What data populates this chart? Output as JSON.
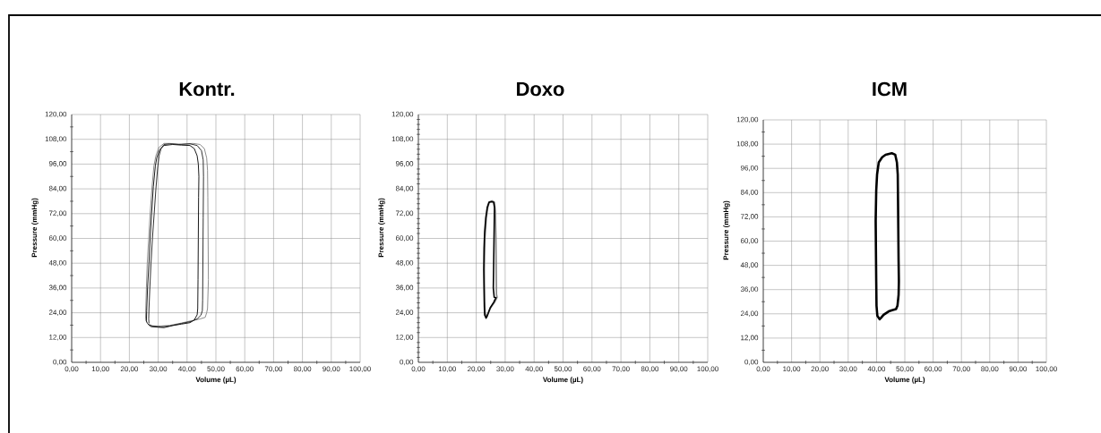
{
  "chart_data": [
    {
      "type": "line",
      "title": "Kontr.",
      "xlabel": "Volume (µL)",
      "ylabel": "Pressure (mmHg)",
      "xlim": [
        0,
        100
      ],
      "ylim": [
        0,
        120
      ],
      "grid": true,
      "xticks": [
        {
          "value": 0,
          "label": "0,00"
        },
        {
          "value": 5,
          "label": null
        },
        {
          "value": 10,
          "label": "10,00"
        },
        {
          "value": 15,
          "label": null
        },
        {
          "value": 20,
          "label": "20,00"
        },
        {
          "value": 25,
          "label": null
        },
        {
          "value": 30,
          "label": "30,00"
        },
        {
          "value": 35,
          "label": null
        },
        {
          "value": 40,
          "label": "40,00"
        },
        {
          "value": 45,
          "label": null
        },
        {
          "value": 50,
          "label": "50,00"
        },
        {
          "value": 55,
          "label": null
        },
        {
          "value": 60,
          "label": "60,00"
        },
        {
          "value": 65,
          "label": null
        },
        {
          "value": 70,
          "label": "70,00"
        },
        {
          "value": 75,
          "label": null
        },
        {
          "value": 80,
          "label": "80,00"
        },
        {
          "value": 85,
          "label": null
        },
        {
          "value": 90,
          "label": "90,00"
        },
        {
          "value": 95,
          "label": null
        },
        {
          "value": 100,
          "label": "100,00"
        }
      ],
      "yticks": [
        {
          "value": 0,
          "label": "0,00"
        },
        {
          "value": 6,
          "label": null
        },
        {
          "value": 12,
          "label": "12,00"
        },
        {
          "value": 18,
          "label": null
        },
        {
          "value": 24,
          "label": "24,00"
        },
        {
          "value": 30,
          "label": null
        },
        {
          "value": 36,
          "label": "36,00"
        },
        {
          "value": 42,
          "label": null
        },
        {
          "value": 48,
          "label": "48,00"
        },
        {
          "value": 54,
          "label": null
        },
        {
          "value": 60,
          "label": "60,00"
        },
        {
          "value": 66,
          "label": null
        },
        {
          "value": 72,
          "label": "72,00"
        },
        {
          "value": 78,
          "label": null
        },
        {
          "value": 84,
          "label": "84,00"
        },
        {
          "value": 90,
          "label": null
        },
        {
          "value": 96,
          "label": "96,00"
        },
        {
          "value": 102,
          "label": null
        },
        {
          "value": 108,
          "label": "108,00"
        },
        {
          "value": 114,
          "label": null
        },
        {
          "value": 120,
          "label": "120,00"
        }
      ],
      "series": [
        {
          "color": "#808080",
          "x": [
            26.2,
            27,
            30,
            34,
            38,
            42,
            44.5,
            46.3,
            46.8,
            47.1,
            47.4,
            47.3,
            47.2,
            47.1,
            46.8,
            46,
            44.5,
            42,
            38,
            34,
            32,
            30.2,
            29.2,
            28.5,
            27.8,
            27.2,
            26.7,
            26.2,
            25.9,
            25.7,
            25.6,
            25.9
          ],
          "values": [
            19,
            17.8,
            17.5,
            17.9,
            19,
            20.3,
            21,
            21.8,
            24,
            26,
            40,
            60,
            80,
            93,
            99,
            103.5,
            105.5,
            106,
            105.6,
            106,
            106,
            104,
            100,
            95,
            84,
            72,
            60,
            48,
            36,
            26,
            21,
            19.8
          ]
        },
        {
          "color": "#000000",
          "x": [
            26.5,
            27.5,
            30,
            32,
            35,
            38,
            41,
            42.5,
            43.5,
            43.7,
            43.8,
            43.9,
            44,
            44.1,
            43.9,
            43.5,
            42.5,
            41,
            38,
            35,
            32,
            30.5,
            29.5,
            29,
            28.3,
            27.7,
            27.2,
            26.8,
            26.3,
            26,
            25.9,
            26.2
          ],
          "values": [
            18.5,
            17.3,
            17,
            16.8,
            17.8,
            18.5,
            19.2,
            20.5,
            23,
            26,
            40,
            60,
            80,
            90,
            96,
            100,
            103.5,
            105,
            105.2,
            105.5,
            105,
            103,
            99,
            95,
            85,
            72,
            60,
            48,
            36,
            25,
            20,
            19
          ]
        },
        {
          "color": "#1a1a1a",
          "x": [
            27,
            28,
            31,
            34,
            38,
            41.5,
            43.5,
            44.8,
            45.3,
            45.4,
            45.5,
            45.6,
            45.7,
            45.6,
            45,
            43.5,
            41,
            37,
            34,
            32,
            31,
            30.3,
            29.8,
            29.2,
            28.6,
            28,
            27.5,
            27.1,
            26.8,
            26.7,
            26.8
          ],
          "values": [
            18.2,
            17.5,
            17.2,
            17.6,
            18.8,
            19.8,
            21,
            22.8,
            25,
            30,
            50,
            70,
            90,
            98,
            102.5,
            105,
            105.8,
            105.5,
            105.8,
            105.5,
            103.5,
            100,
            94,
            84,
            72,
            60,
            48,
            36,
            26,
            21,
            19
          ]
        }
      ]
    },
    {
      "type": "line",
      "title": "Doxo",
      "xlabel": "Volume (µL)",
      "ylabel": "Pressure (mmHg)",
      "xlim": [
        0,
        100
      ],
      "ylim": [
        0,
        120
      ],
      "grid": true,
      "xticks": [
        {
          "value": 0,
          "label": "0,00"
        },
        {
          "value": 5,
          "label": null
        },
        {
          "value": 10,
          "label": "10,00"
        },
        {
          "value": 15,
          "label": null
        },
        {
          "value": 20,
          "label": "20,00"
        },
        {
          "value": 25,
          "label": null
        },
        {
          "value": 30,
          "label": "30,00"
        },
        {
          "value": 35,
          "label": null
        },
        {
          "value": 40,
          "label": "40,00"
        },
        {
          "value": 45,
          "label": null
        },
        {
          "value": 50,
          "label": "50,00"
        },
        {
          "value": 55,
          "label": null
        },
        {
          "value": 60,
          "label": "60,00"
        },
        {
          "value": 65,
          "label": null
        },
        {
          "value": 70,
          "label": "70,00"
        },
        {
          "value": 75,
          "label": null
        },
        {
          "value": 80,
          "label": "80,00"
        },
        {
          "value": 85,
          "label": null
        },
        {
          "value": 90,
          "label": "90,00"
        },
        {
          "value": 95,
          "label": null
        },
        {
          "value": 100,
          "label": "100,00"
        }
      ],
      "yticks": [
        {
          "value": 0,
          "label": "0,00"
        },
        {
          "value": 2.4,
          "label": null
        },
        {
          "value": 4.8,
          "label": null
        },
        {
          "value": 7.2,
          "label": null
        },
        {
          "value": 9.6,
          "label": null
        },
        {
          "value": 12,
          "label": "12,00"
        },
        {
          "value": 14.4,
          "label": null
        },
        {
          "value": 16.8,
          "label": null
        },
        {
          "value": 19.2,
          "label": null
        },
        {
          "value": 21.6,
          "label": null
        },
        {
          "value": 24,
          "label": "24,00"
        },
        {
          "value": 26.4,
          "label": null
        },
        {
          "value": 28.8,
          "label": null
        },
        {
          "value": 31.2,
          "label": null
        },
        {
          "value": 33.6,
          "label": null
        },
        {
          "value": 36,
          "label": "36,00"
        },
        {
          "value": 38.4,
          "label": null
        },
        {
          "value": 40.8,
          "label": null
        },
        {
          "value": 43.2,
          "label": null
        },
        {
          "value": 45.6,
          "label": null
        },
        {
          "value": 48,
          "label": "48,00"
        },
        {
          "value": 50.4,
          "label": null
        },
        {
          "value": 52.8,
          "label": null
        },
        {
          "value": 55.2,
          "label": null
        },
        {
          "value": 57.6,
          "label": null
        },
        {
          "value": 60,
          "label": "60,00"
        },
        {
          "value": 62.4,
          "label": null
        },
        {
          "value": 64.8,
          "label": null
        },
        {
          "value": 67.2,
          "label": null
        },
        {
          "value": 69.6,
          "label": null
        },
        {
          "value": 72,
          "label": "72,00"
        },
        {
          "value": 74.4,
          "label": null
        },
        {
          "value": 76.8,
          "label": null
        },
        {
          "value": 79.2,
          "label": null
        },
        {
          "value": 81.6,
          "label": null
        },
        {
          "value": 84,
          "label": "84,00"
        },
        {
          "value": 86.4,
          "label": null
        },
        {
          "value": 88.8,
          "label": null
        },
        {
          "value": 91.2,
          "label": null
        },
        {
          "value": 93.6,
          "label": null
        },
        {
          "value": 96,
          "label": "96,00"
        },
        {
          "value": 98.4,
          "label": null
        },
        {
          "value": 100.8,
          "label": null
        },
        {
          "value": 103.2,
          "label": null
        },
        {
          "value": 105.6,
          "label": null
        },
        {
          "value": 108,
          "label": "108,00"
        },
        {
          "value": 110.4,
          "label": null
        },
        {
          "value": 112.8,
          "label": null
        },
        {
          "value": 115.2,
          "label": null
        },
        {
          "value": 117.6,
          "label": null
        },
        {
          "value": 120,
          "label": "120,00"
        }
      ],
      "series": [
        {
          "color": "#808080",
          "x": [
            23.6,
            23.1,
            22.9,
            22.8,
            23,
            23.5,
            24,
            24.6,
            25.5,
            26.3,
            26.6,
            26.8,
            26.9,
            27,
            27.2,
            26.3,
            25,
            24.1,
            23.8
          ],
          "values": [
            21.8,
            24,
            30,
            45,
            60,
            70,
            75,
            77.8,
            78.2,
            77.5,
            73,
            60,
            45,
            33,
            31.5,
            29,
            26.5,
            23.5,
            22.3
          ]
        },
        {
          "color": "#000000",
          "x": [
            23.4,
            22.9,
            22.8,
            22.7,
            22.6,
            22.7,
            22.9,
            23.3,
            23.8,
            24.4,
            25.3,
            26,
            26.3,
            26.2,
            26.1,
            26,
            25.9,
            26.2,
            26.8,
            26,
            24.8,
            23.9,
            23.6
          ],
          "values": [
            21.4,
            23,
            27,
            35,
            45,
            55,
            63,
            70,
            75,
            77.5,
            77.8,
            77.5,
            75,
            65,
            55,
            45,
            36,
            31.5,
            31.3,
            29,
            26.3,
            23,
            21.9
          ]
        }
      ]
    },
    {
      "type": "line",
      "title": "ICM",
      "xlabel": "Volume (µL)",
      "ylabel": "Pressure (mmHg)",
      "xlim": [
        0,
        100
      ],
      "ylim": [
        0,
        120
      ],
      "grid": true,
      "xticks": [
        {
          "value": 0,
          "label": "0,00"
        },
        {
          "value": 5,
          "label": null
        },
        {
          "value": 10,
          "label": "10,00"
        },
        {
          "value": 15,
          "label": null
        },
        {
          "value": 20,
          "label": "20,00"
        },
        {
          "value": 25,
          "label": null
        },
        {
          "value": 30,
          "label": "30,00"
        },
        {
          "value": 35,
          "label": null
        },
        {
          "value": 40,
          "label": "40,00"
        },
        {
          "value": 45,
          "label": null
        },
        {
          "value": 50,
          "label": "50,00"
        },
        {
          "value": 55,
          "label": null
        },
        {
          "value": 60,
          "label": "60,00"
        },
        {
          "value": 65,
          "label": null
        },
        {
          "value": 70,
          "label": "70,00"
        },
        {
          "value": 75,
          "label": null
        },
        {
          "value": 80,
          "label": "80,00"
        },
        {
          "value": 85,
          "label": null
        },
        {
          "value": 90,
          "label": "90,00"
        },
        {
          "value": 95,
          "label": null
        },
        {
          "value": 100,
          "label": "100,00"
        }
      ],
      "yticks": [
        {
          "value": 0,
          "label": "0,00"
        },
        {
          "value": 6,
          "label": null
        },
        {
          "value": 12,
          "label": "12,00"
        },
        {
          "value": 18,
          "label": null
        },
        {
          "value": 24,
          "label": "24,00"
        },
        {
          "value": 30,
          "label": null
        },
        {
          "value": 36,
          "label": "36,00"
        },
        {
          "value": 42,
          "label": null
        },
        {
          "value": 48,
          "label": "48,00"
        },
        {
          "value": 54,
          "label": null
        },
        {
          "value": 60,
          "label": "60,00"
        },
        {
          "value": 66,
          "label": null
        },
        {
          "value": 72,
          "label": "72,00"
        },
        {
          "value": 78,
          "label": null
        },
        {
          "value": 84,
          "label": "84,00"
        },
        {
          "value": 90,
          "label": null
        },
        {
          "value": 96,
          "label": "96,00"
        },
        {
          "value": 102,
          "label": null
        },
        {
          "value": 108,
          "label": "108,00"
        },
        {
          "value": 114,
          "label": null
        },
        {
          "value": 120,
          "label": "120,00"
        }
      ],
      "series": [
        {
          "color": "#000000",
          "x": [
            41.1,
            40.3,
            40,
            39.9,
            39.8,
            39.7,
            39.9,
            40.2,
            40.8,
            42,
            43.2,
            45.4,
            46.6,
            47.2,
            47.5,
            47.6,
            47.7,
            47.8,
            47.9,
            47.8,
            47.4,
            46.9,
            45.5,
            44.3,
            42.5,
            41.5
          ],
          "values": [
            21.3,
            23,
            28,
            40,
            55,
            70,
            85,
            93,
            99,
            101.5,
            102.7,
            103.5,
            102.8,
            99,
            93,
            80,
            65,
            50,
            40,
            33.4,
            28,
            26.3,
            25.8,
            25.2,
            23.5,
            21.9
          ]
        }
      ]
    }
  ]
}
